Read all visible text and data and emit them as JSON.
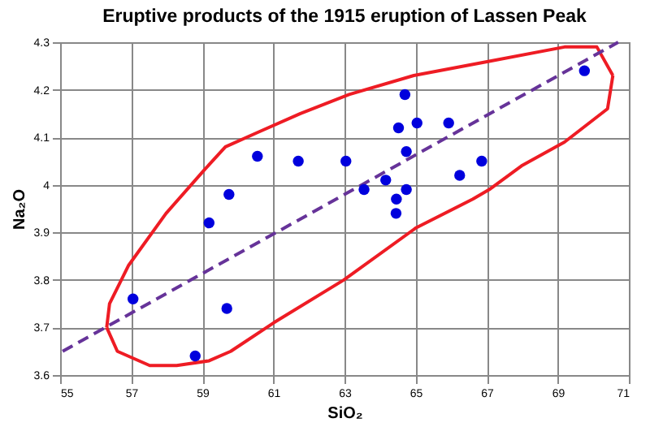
{
  "chart_data": {
    "type": "scatter",
    "title": "Eruptive products of the 1915 eruption of Lassen Peak",
    "xlabel": "SiO₂",
    "ylabel": "Na₂O",
    "xlim": [
      55,
      71
    ],
    "xticks": [
      55,
      57,
      59,
      61,
      63,
      65,
      67,
      69,
      71
    ],
    "ylim": [
      3.6,
      4.3
    ],
    "yticks": [
      3.6,
      3.7,
      3.8,
      3.9,
      4,
      4.1,
      4.2,
      4.3
    ],
    "grid": true,
    "marker": "circle",
    "series": [
      {
        "type": "line",
        "color": "#ee1c24",
        "line_style": "solid",
        "marker": "none",
        "x": [
          56.31,
          56.39,
          56.92,
          57.98,
          59.04,
          59.65,
          60.55,
          61.76,
          63.13,
          64.95,
          67.07,
          69.19,
          70.1,
          70.55
        ],
        "values": [
          3.7,
          3.75,
          3.83,
          3.94,
          4.03,
          4.08,
          4.11,
          4.15,
          4.19,
          4.23,
          4.26,
          4.29,
          4.29,
          4.23
        ]
      },
      {
        "type": "line",
        "color": "#ee1c24",
        "line_style": "solid",
        "marker": "none",
        "x": [
          56.31,
          56.61,
          57.52,
          58.28,
          59.19,
          59.8,
          61.01,
          62.98,
          65.02,
          66.61,
          67.07,
          67.98,
          69.19,
          70.4,
          70.55
        ],
        "values": [
          3.7,
          3.65,
          3.62,
          3.62,
          3.63,
          3.65,
          3.71,
          3.8,
          3.91,
          3.97,
          3.99,
          4.04,
          4.09,
          4.16,
          4.23
        ]
      },
      {
        "type": "line",
        "color": "#663399",
        "line_style": "dashed",
        "marker": "none",
        "x": [
          55.07,
          70.7
        ],
        "values": [
          3.65,
          4.3
        ]
      },
      {
        "type": "scatter",
        "color": "#0000dd",
        "x": [
          69.75,
          64.7,
          65.04,
          64.52,
          65.93,
          64.74,
          60.55,
          61.7,
          63.04,
          66.86,
          66.24,
          64.16,
          63.55,
          64.74,
          59.75,
          64.46,
          64.45,
          59.19,
          57.05,
          59.69,
          58.8
        ],
        "values": [
          4.24,
          4.19,
          4.13,
          4.12,
          4.13,
          4.07,
          4.06,
          4.05,
          4.05,
          4.05,
          4.02,
          4.01,
          3.99,
          3.99,
          3.98,
          3.97,
          3.94,
          3.92,
          3.76,
          3.74,
          3.64
        ]
      }
    ]
  }
}
